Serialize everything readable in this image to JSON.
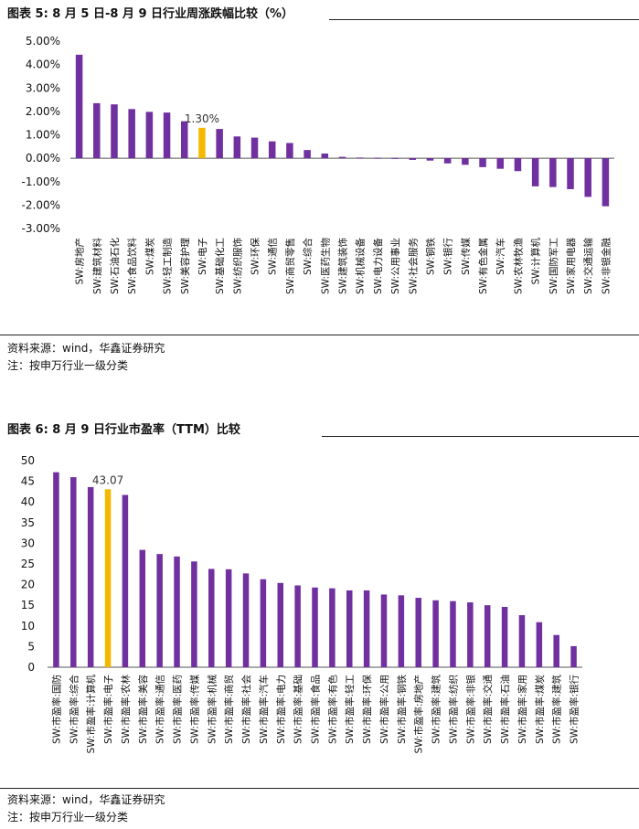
{
  "chart_data": [
    {
      "type": "bar",
      "title": "图表 5: 8 月 5 日-8 月 9 日行业周涨跌幅比较（%）",
      "categories": [
        "SW:房地产",
        "SW:建筑材料",
        "SW:石油石化",
        "SW:食品饮料",
        "SW:煤炭",
        "SW:轻工制造",
        "SW:美容护理",
        "SW:电子",
        "SW:基础化工",
        "SW:纺织服饰",
        "SW:环保",
        "SW:通信",
        "SW:商贸零售",
        "SW:综合",
        "SW:医药生物",
        "SW:建筑装饰",
        "SW:机械设备",
        "SW:电力设备",
        "SW:公用事业",
        "SW:社会服务",
        "SW:钢铁",
        "SW:银行",
        "SW:传媒",
        "SW:有色金属",
        "SW:汽车",
        "SW:农林牧渔",
        "SW:计算机",
        "SW:国防军工",
        "SW:家用电器",
        "SW:交通运输",
        "SW:非银金融"
      ],
      "values": [
        4.42,
        2.35,
        2.3,
        2.1,
        1.98,
        1.95,
        1.58,
        1.3,
        1.25,
        0.93,
        0.88,
        0.72,
        0.65,
        0.35,
        0.2,
        0.06,
        0.03,
        0.02,
        0.01,
        -0.07,
        -0.1,
        -0.22,
        -0.28,
        -0.38,
        -0.45,
        -0.55,
        -1.2,
        -1.23,
        -1.32,
        -1.65,
        -2.05
      ],
      "highlight_index": 7,
      "highlight_label": "1.30%",
      "yticks": [
        "5.00%",
        "4.00%",
        "3.00%",
        "2.00%",
        "1.00%",
        "0.00%",
        "-1.00%",
        "-2.00%",
        "-3.00%"
      ],
      "ylim": [
        -3,
        5
      ],
      "grid": false,
      "source": "资料来源：wind，华鑫证券研究",
      "note": "注：按申万行业一级分类"
    },
    {
      "type": "bar",
      "title": "图表 6: 8 月 9 日行业市盈率（TTM）比较",
      "categories": [
        "SW:市盈率:国防",
        "SW:市盈率:综合",
        "SW:市盈率:计算机",
        "SW:市盈率:电子",
        "SW:市盈率:农林",
        "SW:市盈率:美容",
        "SW:市盈率:通信",
        "SW:市盈率:医药",
        "SW:市盈率:传媒",
        "SW:市盈率:机械",
        "SW:市盈率:商贸",
        "SW:市盈率:社会",
        "SW:市盈率:汽车",
        "SW:市盈率:电力",
        "SW:市盈率:基础",
        "SW:市盈率:食品",
        "SW:市盈率:有色",
        "SW:市盈率:轻工",
        "SW:市盈率:环保",
        "SW:市盈率:公用",
        "SW:市盈率:钢铁",
        "SW:市盈率:房地产",
        "SW:市盈率:建筑",
        "SW:市盈率:纺织",
        "SW:市盈率:非银",
        "SW:市盈率:交通",
        "SW:市盈率:石油",
        "SW:市盈率:家用",
        "SW:市盈率:煤炭",
        "SW:市盈率:建筑",
        "SW:市盈率:银行"
      ],
      "values": [
        47.2,
        46.0,
        43.6,
        43.07,
        41.7,
        28.4,
        27.4,
        26.8,
        25.6,
        23.8,
        23.7,
        22.7,
        21.3,
        20.4,
        19.8,
        19.3,
        19.1,
        18.6,
        18.6,
        17.6,
        17.4,
        16.8,
        16.2,
        16.0,
        15.7,
        15.0,
        14.6,
        12.6,
        10.9,
        7.8,
        5.1
      ],
      "highlight_index": 3,
      "highlight_label": "43.07",
      "yticks": [
        "50",
        "45",
        "40",
        "35",
        "30",
        "25",
        "20",
        "15",
        "10",
        "5",
        "0"
      ],
      "ylim": [
        0,
        50
      ],
      "grid": false,
      "source": "资料来源：wind，华鑫证券研究",
      "note": "注：按申万行业一级分类"
    }
  ],
  "colors": {
    "bar": "#7030a0",
    "highlight": "#f5b800",
    "axis": "#555555",
    "text": "#111111"
  }
}
